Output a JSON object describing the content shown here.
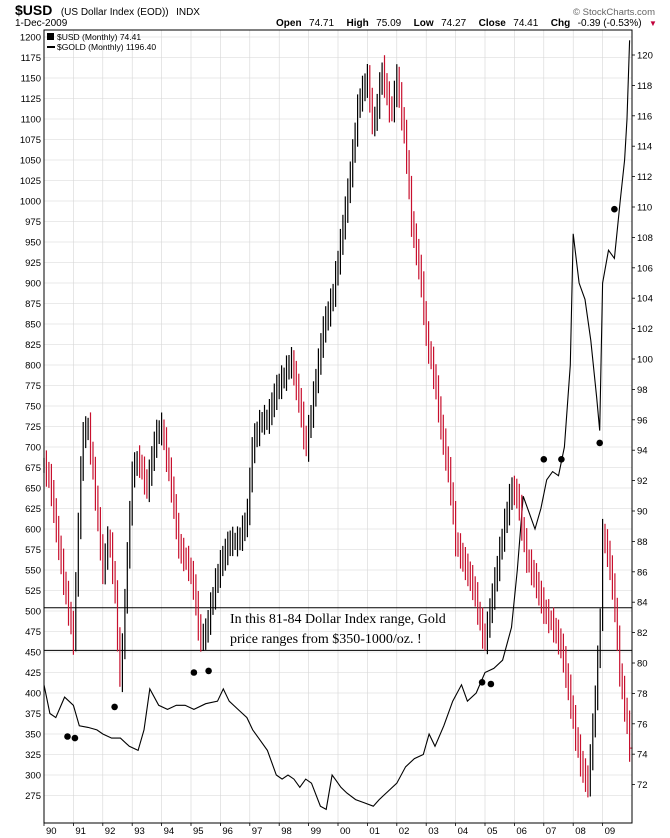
{
  "chart_data": {
    "type": "ohlc-line-overlay",
    "title": {
      "symbol": "$USD",
      "name": "(US Dollar Index (EOD))",
      "exchange": "INDX",
      "date": "1-Dec-2009",
      "open_label": "Open",
      "open": "74.71",
      "high_label": "High",
      "high": "75.09",
      "low_label": "Low",
      "low": "74.27",
      "close_label": "Close",
      "close": "74.41",
      "chg_label": "Chg",
      "chg": "-0.39 (-0.53%)",
      "chg_arrow": "▼"
    },
    "copyright": "© StockCharts.com",
    "legend": [
      {
        "label": "$USD (Monthly) 74.41",
        "color": "#000000"
      },
      {
        "label": "$GOLD (Monthly) 1196.40",
        "color": "#000000"
      }
    ],
    "left_axis": {
      "series": "$GOLD",
      "min": 250,
      "max": 1200,
      "ticks": [
        275,
        300,
        325,
        350,
        375,
        400,
        425,
        450,
        475,
        500,
        525,
        550,
        575,
        600,
        625,
        650,
        675,
        700,
        725,
        750,
        775,
        800,
        825,
        850,
        875,
        900,
        925,
        950,
        975,
        1000,
        1025,
        1050,
        1075,
        1100,
        1125,
        1150,
        1175,
        1200
      ]
    },
    "right_axis": {
      "series": "$USD",
      "min": 70.5,
      "max": 121.5,
      "ticks": [
        72,
        74,
        76,
        78,
        80,
        82,
        84,
        86,
        88,
        90,
        92,
        94,
        96,
        98,
        100,
        102,
        104,
        106,
        108,
        110,
        112,
        114,
        116,
        118,
        120
      ]
    },
    "x_axis": {
      "start": 1990.0,
      "end": 2010.0,
      "labels": [
        "90",
        "91",
        "92",
        "93",
        "94",
        "95",
        "96",
        "97",
        "98",
        "99",
        "00",
        "01",
        "02",
        "03",
        "04",
        "05",
        "06",
        "07",
        "08",
        "09"
      ]
    },
    "usd_series": {
      "name": "$USD (Monthly)",
      "axis": "right",
      "x": [
        1990.0,
        1990.2,
        1990.4,
        1990.7,
        1991.0,
        1991.1,
        1991.3,
        1991.5,
        1991.7,
        1992.0,
        1992.2,
        1992.4,
        1992.6,
        1992.8,
        1993.0,
        1993.2,
        1993.5,
        1993.8,
        1994.0,
        1994.3,
        1994.6,
        1994.9,
        1995.1,
        1995.3,
        1995.5,
        1995.8,
        1996.0,
        1996.3,
        1996.6,
        1996.9,
        1997.1,
        1997.4,
        1997.6,
        1997.9,
        1998.2,
        1998.4,
        1998.7,
        1998.9,
        1999.2,
        1999.5,
        1999.8,
        2000.0,
        2000.3,
        2000.5,
        2000.7,
        2001.0,
        2001.2,
        2001.5,
        2001.8,
        2002.0,
        2002.3,
        2002.5,
        2002.8,
        2003.0,
        2003.3,
        2003.5,
        2003.8,
        2004.0,
        2004.3,
        2004.6,
        2004.9,
        2005.0,
        2005.3,
        2005.6,
        2005.9,
        2006.1,
        2006.4,
        2006.7,
        2007.0,
        2007.3,
        2007.6,
        2007.9,
        2008.1,
        2008.3,
        2008.5,
        2008.7,
        2008.9,
        2009.0,
        2009.2,
        2009.4,
        2009.6,
        2009.8,
        2009.92
      ],
      "values": [
        93.0,
        92.0,
        89.0,
        85.0,
        81.5,
        86.0,
        95.0,
        95.5,
        92.0,
        86.0,
        88.5,
        85.0,
        78.5,
        86.0,
        92.5,
        93.5,
        91.5,
        95.0,
        95.5,
        92.0,
        87.5,
        86.5,
        85.0,
        81.5,
        82.0,
        85.0,
        86.5,
        88.0,
        88.0,
        89.5,
        94.5,
        96.0,
        96.0,
        98.0,
        99.0,
        100.0,
        97.0,
        94.0,
        98.0,
        102.0,
        104.0,
        106.5,
        110.5,
        113.5,
        117.0,
        118.5,
        115.0,
        119.0,
        116.0,
        118.5,
        114.0,
        109.0,
        105.5,
        101.5,
        98.5,
        95.5,
        92.0,
        88.0,
        86.5,
        85.0,
        82.0,
        81.5,
        85.0,
        88.5,
        91.5,
        91.0,
        87.0,
        85.5,
        83.5,
        82.5,
        81.0,
        77.5,
        75.0,
        73.0,
        72.0,
        76.5,
        82.0,
        88.5,
        87.0,
        84.0,
        79.0,
        76.5,
        74.4
      ]
    },
    "gold_series": {
      "name": "$GOLD (Monthly)",
      "axis": "left",
      "x": [
        1990.0,
        1990.2,
        1990.4,
        1990.7,
        1991.0,
        1991.2,
        1991.5,
        1991.8,
        1992.0,
        1992.3,
        1992.6,
        1992.9,
        1993.2,
        1993.4,
        1993.6,
        1993.9,
        1994.2,
        1994.5,
        1994.8,
        1995.1,
        1995.5,
        1995.9,
        1996.1,
        1996.3,
        1996.6,
        1996.9,
        1997.1,
        1997.3,
        1997.6,
        1997.9,
        1998.1,
        1998.3,
        1998.5,
        1998.7,
        1998.9,
        1999.1,
        1999.4,
        1999.6,
        1999.8,
        1999.9,
        2000.1,
        2000.3,
        2000.6,
        2000.9,
        2001.2,
        2001.4,
        2001.7,
        2002.0,
        2002.3,
        2002.6,
        2002.9,
        2003.1,
        2003.3,
        2003.6,
        2003.9,
        2004.2,
        2004.4,
        2004.7,
        2005.0,
        2005.3,
        2005.6,
        2005.9,
        2006.1,
        2006.3,
        2006.5,
        2006.7,
        2006.9,
        2007.1,
        2007.3,
        2007.5,
        2007.7,
        2007.9,
        2008.0,
        2008.2,
        2008.4,
        2008.6,
        2008.8,
        2008.9,
        2009.0,
        2009.2,
        2009.4,
        2009.6,
        2009.75,
        2009.83,
        2009.92
      ],
      "values": [
        410,
        375,
        370,
        395,
        385,
        360,
        358,
        355,
        350,
        345,
        345,
        335,
        330,
        355,
        405,
        385,
        380,
        385,
        385,
        380,
        387,
        390,
        405,
        390,
        380,
        370,
        355,
        345,
        330,
        300,
        295,
        300,
        295,
        285,
        295,
        290,
        262,
        258,
        300,
        295,
        285,
        278,
        270,
        266,
        262,
        270,
        280,
        290,
        310,
        320,
        325,
        350,
        335,
        360,
        390,
        410,
        390,
        400,
        425,
        430,
        440,
        480,
        550,
        640,
        620,
        600,
        625,
        660,
        670,
        665,
        700,
        800,
        960,
        900,
        880,
        830,
        760,
        720,
        900,
        940,
        930,
        1000,
        1050,
        1100,
        1196
      ]
    },
    "reference_lines_left_axis": [
      504,
      452
    ],
    "annotation": [
      "In this 81-84 Dollar Index range, Gold",
      "price ranges from $350-1000/oz. !"
    ],
    "markers": [
      {
        "x": 1990.8,
        "y_left": 347
      },
      {
        "x": 1991.05,
        "y_left": 345
      },
      {
        "x": 1992.4,
        "y_left": 383
      },
      {
        "x": 1995.1,
        "y_left": 425
      },
      {
        "x": 1995.6,
        "y_left": 427
      },
      {
        "x": 2004.9,
        "y_left": 413
      },
      {
        "x": 2005.2,
        "y_left": 411
      },
      {
        "x": 2007.0,
        "y_left": 685
      },
      {
        "x": 2007.6,
        "y_left": 685
      },
      {
        "x": 2008.9,
        "y_left": 705
      },
      {
        "x": 2009.4,
        "y_left": 990
      }
    ]
  }
}
